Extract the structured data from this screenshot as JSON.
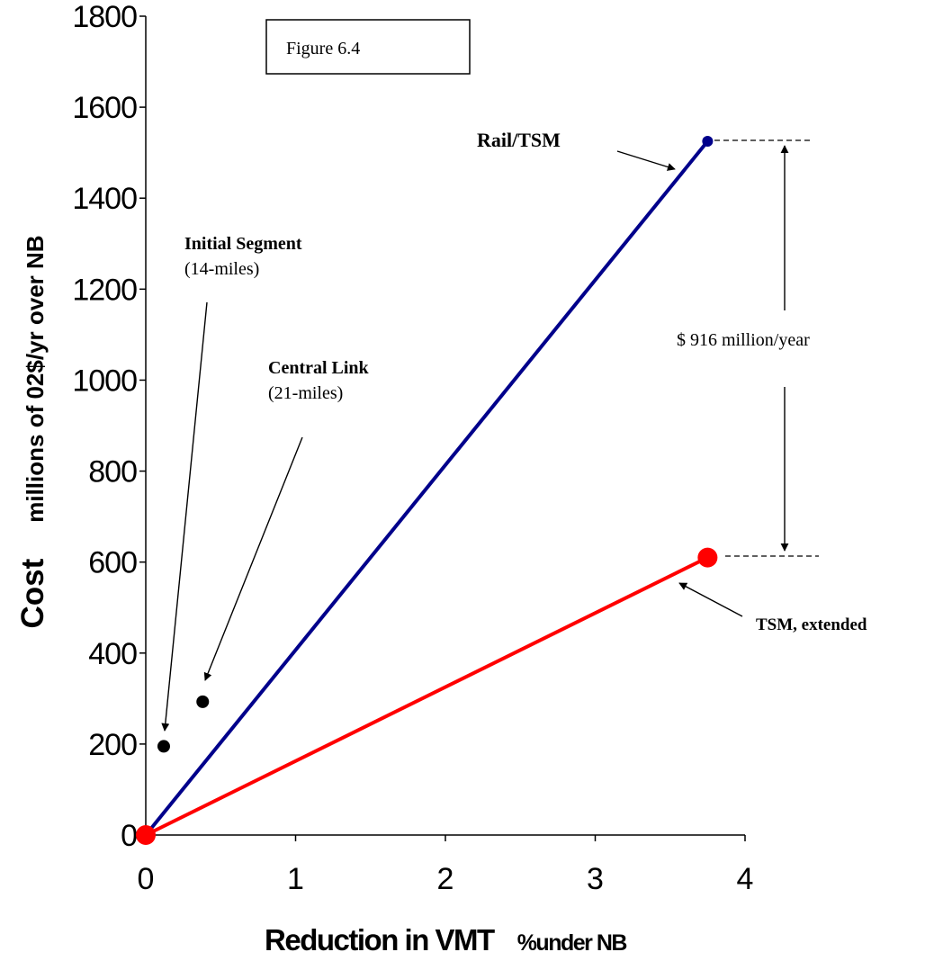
{
  "figure_label": "Figure 6.4",
  "chart_data": {
    "type": "line",
    "x_axis": {
      "label_main": "Reduction in VMT",
      "label_unit": "%under NB",
      "min": 0,
      "max": 4,
      "ticks": [
        0,
        1,
        2,
        3,
        4
      ]
    },
    "y_axis": {
      "label_main": "Cost",
      "label_unit": "millions of 02$/yr over NB",
      "min": 0,
      "max": 1800,
      "ticks": [
        0,
        200,
        400,
        600,
        800,
        1000,
        1200,
        1400,
        1600,
        1800
      ]
    },
    "grid": false,
    "series": [
      {
        "name": "Rail/TSM",
        "color": "#00008b",
        "points": [
          [
            0,
            0
          ],
          [
            3.75,
            1525
          ]
        ]
      },
      {
        "name": "TSM, extended",
        "color": "#ff0000",
        "points": [
          [
            0,
            0
          ],
          [
            3.75,
            610
          ]
        ]
      }
    ],
    "scatter_points": [
      {
        "x": 0.12,
        "y": 195
      },
      {
        "x": 0.38,
        "y": 293
      }
    ],
    "annotations": {
      "rail_tsm": "Rail/TSM",
      "tsm_extended": "TSM, extended",
      "initial_segment_title": "Initial Segment",
      "initial_segment_sub": "(14-miles)",
      "central_link_title": "Central Link",
      "central_link_sub": "(21-miles)",
      "difference": "$ 916 million/year"
    }
  }
}
